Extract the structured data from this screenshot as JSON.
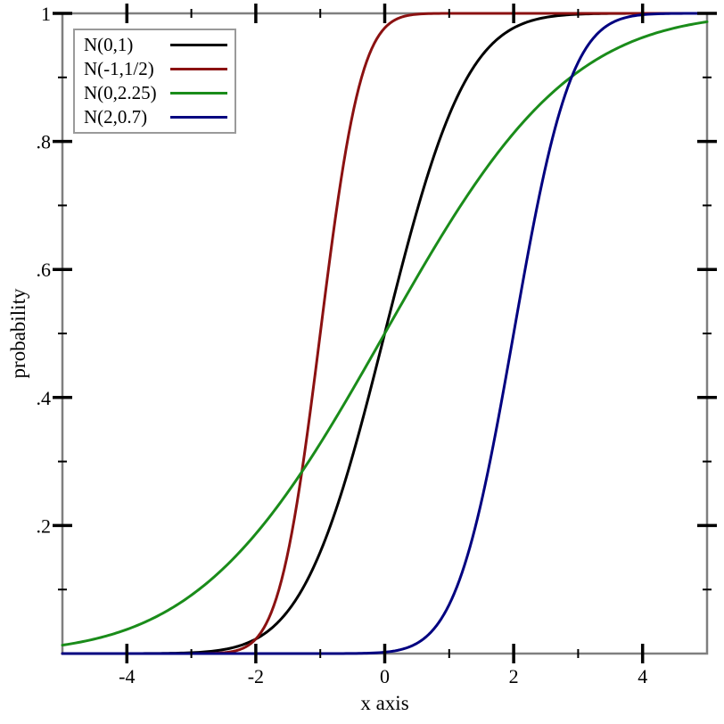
{
  "chart_data": {
    "type": "line",
    "subtype": "normal_cdf",
    "description": "Cumulative distribution functions of four normal distributions; y = Phi((x - mean)/sd)",
    "title": "",
    "xlabel": "x axis",
    "ylabel": "probability",
    "xlim": [
      -5,
      5
    ],
    "ylim": [
      0,
      1
    ],
    "grid": false,
    "frame_color": "#7f7f7f",
    "tick_color": "#000000",
    "background_color": "#ffffff",
    "x_ticks": {
      "major": [
        -4,
        -2,
        0,
        2,
        4
      ],
      "major_labels": [
        "-4",
        "-2",
        "0",
        "2",
        "4"
      ],
      "minor": [
        -3,
        -1,
        1,
        3
      ]
    },
    "y_ticks": {
      "major": [
        0.2,
        0.4,
        0.6,
        0.8,
        1
      ],
      "major_labels": [
        ".2",
        ".4",
        ".6",
        ".8",
        "1"
      ],
      "minor": [
        0.1,
        0.3,
        0.5,
        0.7,
        0.9
      ]
    },
    "series": [
      {
        "name": "N(0,1)",
        "mean": 0,
        "sd": 1,
        "color": "#000000"
      },
      {
        "name": "N(-1,1/2)",
        "mean": -1,
        "sd": 0.5,
        "color": "#8b1111"
      },
      {
        "name": "N(0,2.25)",
        "mean": 0,
        "sd": 2.25,
        "color": "#1a8c1a"
      },
      {
        "name": "N(2,0.7)",
        "mean": 2,
        "sd": 0.7,
        "color": "#000080"
      }
    ],
    "legend": {
      "position": "top-left",
      "entries": [
        "N(0,1)",
        "N(-1,1/2)",
        "N(0,2.25)",
        "N(2,0.7)"
      ]
    }
  }
}
